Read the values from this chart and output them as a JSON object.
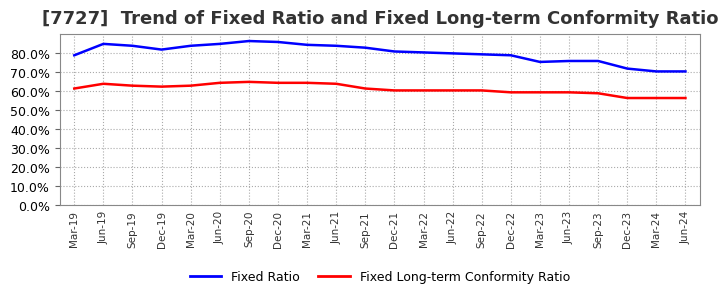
{
  "title": "[7727]  Trend of Fixed Ratio and Fixed Long-term Conformity Ratio",
  "labels": [
    "Mar-19",
    "Jun-19",
    "Sep-19",
    "Dec-19",
    "Mar-20",
    "Jun-20",
    "Sep-20",
    "Dec-20",
    "Mar-21",
    "Jun-21",
    "Sep-21",
    "Dec-21",
    "Mar-22",
    "Jun-22",
    "Sep-22",
    "Dec-22",
    "Mar-23",
    "Jun-23",
    "Sep-23",
    "Dec-23",
    "Mar-24",
    "Jun-24"
  ],
  "fixed_ratio": [
    79.0,
    85.0,
    84.0,
    82.0,
    84.0,
    85.0,
    86.5,
    86.0,
    84.5,
    84.0,
    83.0,
    81.0,
    80.5,
    80.0,
    79.5,
    79.0,
    75.5,
    76.0,
    76.0,
    72.0,
    70.5,
    70.5
  ],
  "fixed_lt_ratio": [
    61.5,
    64.0,
    63.0,
    62.5,
    63.0,
    64.5,
    65.0,
    64.5,
    64.5,
    64.0,
    61.5,
    60.5,
    60.5,
    60.5,
    60.5,
    59.5,
    59.5,
    59.5,
    59.0,
    56.5,
    56.5,
    56.5
  ],
  "fixed_ratio_color": "#0000FF",
  "fixed_lt_ratio_color": "#FF0000",
  "ylim": [
    0,
    90
  ],
  "yticks": [
    0,
    10,
    20,
    30,
    40,
    50,
    60,
    70,
    80
  ],
  "background_color": "#FFFFFF",
  "plot_background": "#FFFFFF",
  "grid_color": "#AAAAAA",
  "title_fontsize": 13,
  "title_color": "#333333",
  "legend_labels": [
    "Fixed Ratio",
    "Fixed Long-term Conformity Ratio"
  ]
}
